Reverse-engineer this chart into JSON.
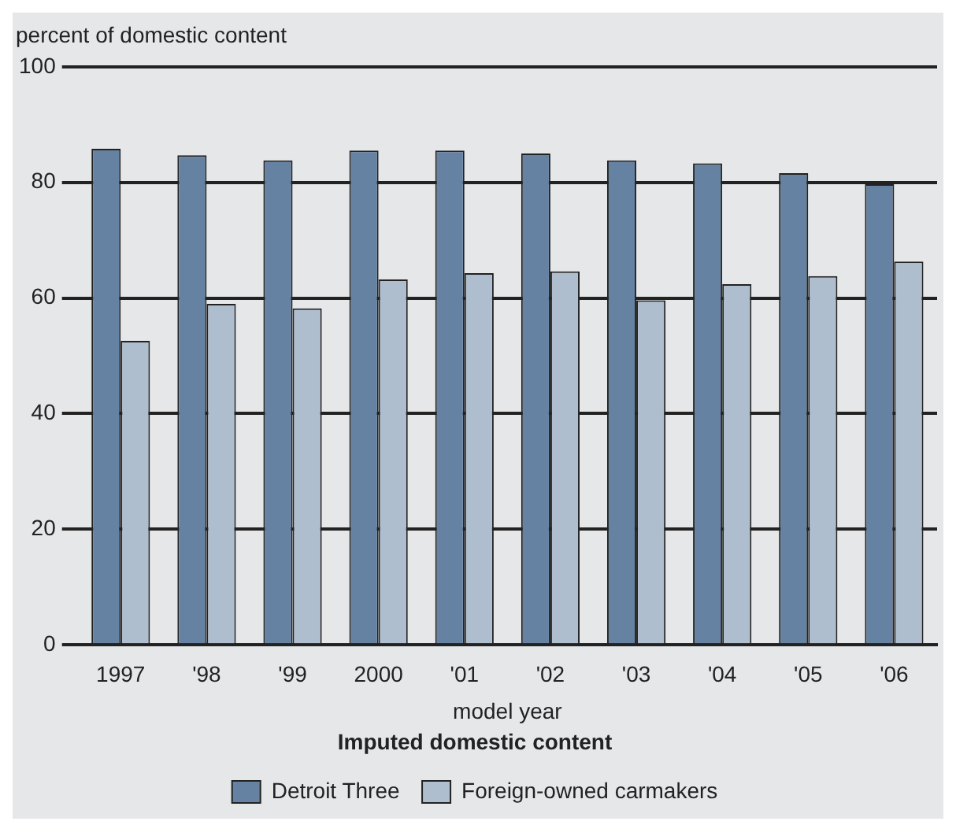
{
  "chart_data": {
    "type": "bar",
    "ylabel": "percent of domestic content",
    "xlabel": "model year",
    "legend_title": "Imputed domestic content",
    "categories": [
      "1997",
      "'98",
      "'99",
      "2000",
      "'01",
      "'02",
      "'03",
      "'04",
      "'05",
      "'06"
    ],
    "series": [
      {
        "name": "Detroit Three",
        "color": "#6682a3",
        "values": [
          85.8,
          84.7,
          83.8,
          85.5,
          85.5,
          85,
          83.8,
          83.3,
          81.6,
          79.7
        ]
      },
      {
        "name": "Foreign-owned carmakers",
        "color": "#afbecf",
        "values": [
          52.6,
          59,
          58.2,
          63.2,
          64.3,
          64.6,
          59.6,
          62.4,
          63.8,
          66.3
        ]
      }
    ],
    "ylim": [
      0,
      100
    ],
    "yticks": [
      0,
      20,
      40,
      60,
      80,
      100
    ],
    "grid": "y",
    "legend": "bottom"
  }
}
